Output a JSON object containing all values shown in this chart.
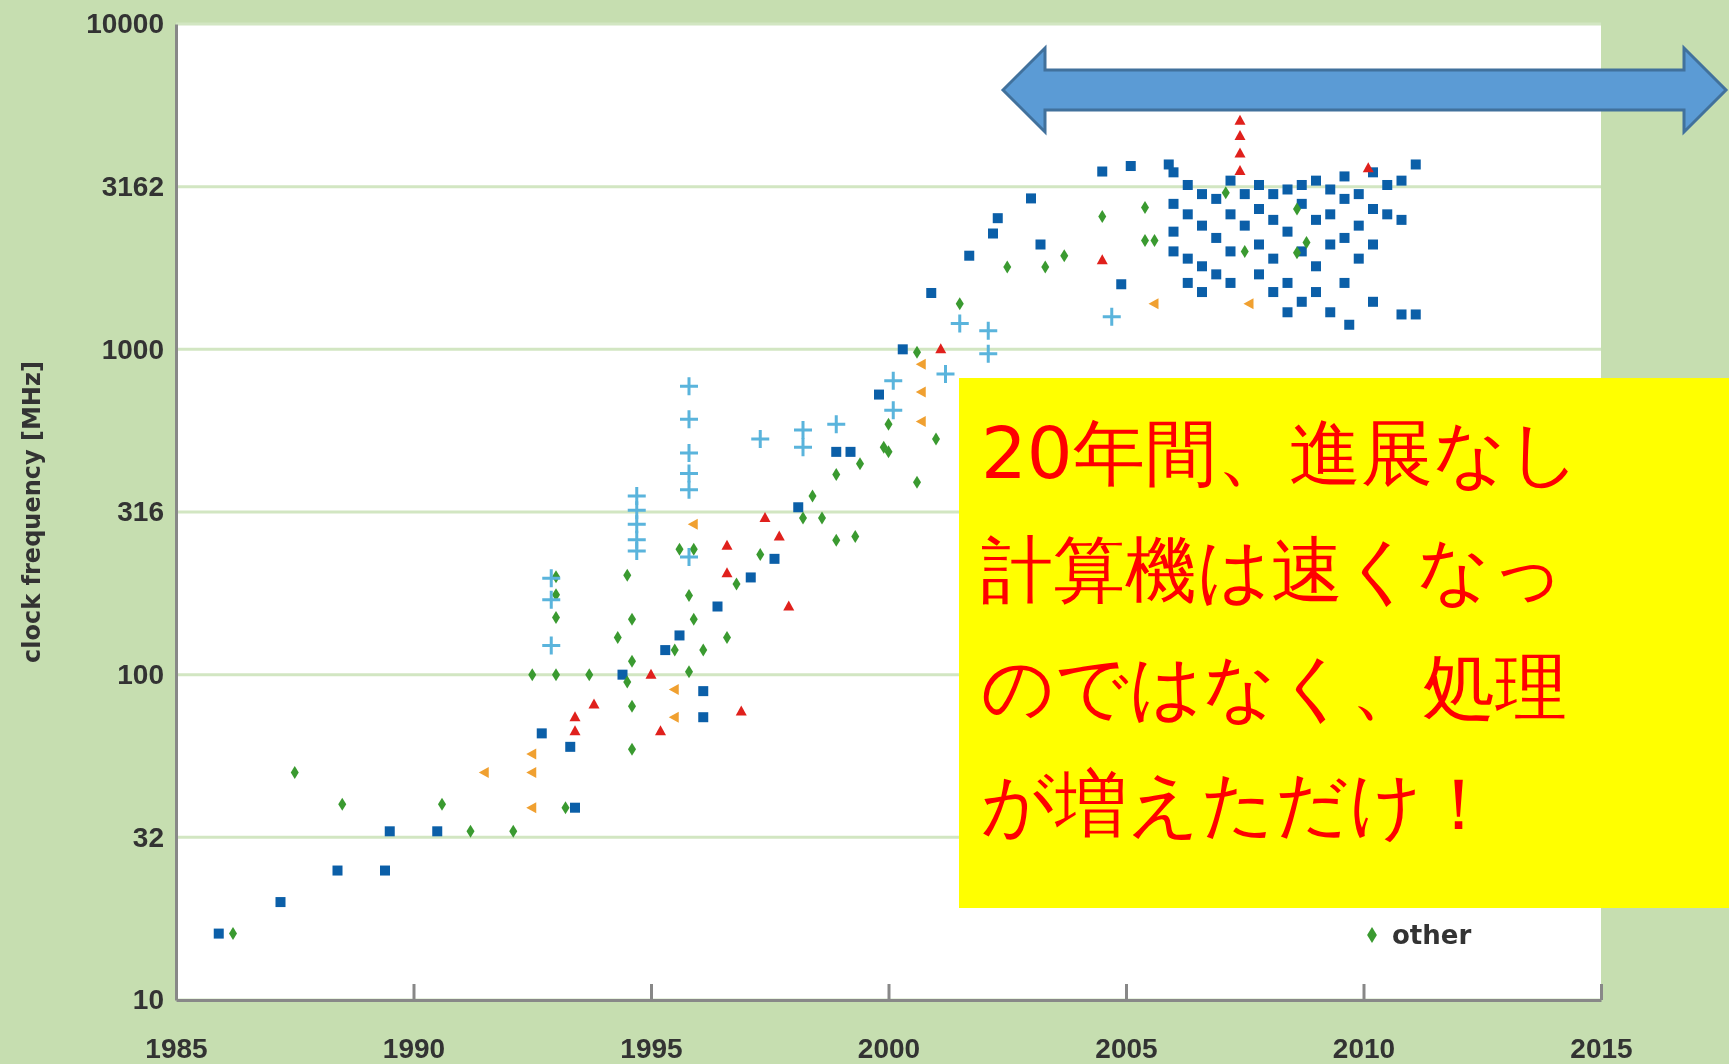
{
  "chart_data": {
    "type": "scatter",
    "ylabel": "clock frequency [MHz]",
    "log": "y",
    "grid": "y",
    "legend": "bottom right",
    "xlim": [
      1985,
      2015
    ],
    "xticks": [
      1985,
      1990,
      1995,
      2000,
      2005,
      2010,
      2015
    ],
    "ylim": [
      10,
      10000
    ],
    "yticks": [
      10,
      {
        "value": 31.62,
        "label": "32"
      },
      100,
      {
        "value": 316.2,
        "label": "316"
      },
      1000,
      3162,
      10000
    ],
    "annotations": [
      "20年間、進展なし計算機は速くなっのではなく、処理が増えただけ！"
    ],
    "series": [
      {
        "color": "#0b5fa8",
        "marker": "square",
        "x": [
          1985.9,
          1987.2,
          1988.4,
          1989.4,
          1989.5,
          1990.5,
          1992.7,
          1993.3,
          1993.4,
          1994.4,
          1995.3,
          1995.6,
          1996.1,
          1996.1,
          1996.4,
          1997.1,
          1997.6,
          1998.1,
          1998.9,
          1999.2,
          1999.8,
          2000.3,
          2000.9,
          2001.7,
          2002.2,
          2002.3,
          2003.0,
          2003.2,
          2004.5,
          2005.1,
          2004.9,
          2005.9,
          2006.0,
          2006.0,
          2006.0,
          2006.0,
          2006.3,
          2006.3,
          2006.3,
          2006.3,
          2006.6,
          2006.6,
          2006.6,
          2006.6,
          2006.9,
          2006.9,
          2006.9,
          2007.2,
          2007.2,
          2007.2,
          2007.2,
          2007.5,
          2007.5,
          2007.8,
          2007.8,
          2007.8,
          2007.8,
          2008.1,
          2008.1,
          2008.1,
          2008.1,
          2008.4,
          2008.4,
          2008.4,
          2008.4,
          2008.7,
          2008.7,
          2008.7,
          2008.7,
          2009.0,
          2009.0,
          2009.0,
          2009.0,
          2009.3,
          2009.3,
          2009.3,
          2009.3,
          2009.6,
          2009.6,
          2009.6,
          2009.6,
          2009.7,
          2009.9,
          2009.9,
          2009.9,
          2010.2,
          2010.2,
          2010.2,
          2010.2,
          2010.5,
          2010.5,
          2010.8,
          2010.8,
          2010.8,
          2011.1,
          2011.1
        ],
        "values": [
          16,
          20,
          25,
          25,
          33,
          33,
          66,
          60,
          39,
          100,
          119,
          132,
          89,
          74,
          162,
          199,
          227,
          327,
          484,
          484,
          726,
          1000,
          1490,
          1940,
          2270,
          2530,
          2910,
          2100,
          3520,
          3660,
          1585,
          3700,
          3500,
          2800,
          2300,
          2000,
          3200,
          2600,
          1900,
          1600,
          3000,
          2400,
          1800,
          1500,
          2900,
          2200,
          1700,
          3300,
          2600,
          2000,
          1600,
          3000,
          2400,
          3200,
          2700,
          2100,
          1700,
          3000,
          2500,
          1900,
          1500,
          3100,
          2300,
          1600,
          1300,
          3200,
          2800,
          2000,
          1400,
          3300,
          2500,
          1800,
          1500,
          3100,
          2600,
          2100,
          1300,
          3400,
          2900,
          2200,
          1600,
          1190,
          3000,
          2400,
          1900,
          3500,
          2700,
          2100,
          1400,
          3200,
          2600,
          3300,
          2500,
          1280,
          3700,
          1280
        ]
      },
      {
        "name": "other",
        "color": "#3a9a30",
        "marker": "diamond",
        "x": [
          1986.2,
          1987.5,
          1988.5,
          1990.6,
          1991.2,
          1992.1,
          1992.5,
          1993.0,
          1993.2,
          1993.0,
          1993.0,
          1993.0,
          1993.7,
          1994.3,
          1994.5,
          1994.6,
          1994.6,
          1994.5,
          1994.6,
          1994.6,
          1995.6,
          1995.9,
          1995.8,
          1995.9,
          1996.1,
          1995.5,
          1995.8,
          1996.6,
          1996.8,
          1997.3,
          1998.2,
          1998.4,
          1998.6,
          1998.9,
          1999.3,
          1998.9,
          1999.4,
          1999.9,
          2000.0,
          2000.0,
          2000.6,
          2000.6,
          2001.0,
          2001.5,
          2002.5,
          2003.3,
          2003.7,
          2004.5,
          2005.4,
          2005.4,
          2005.6,
          2007.1,
          2007.5,
          2008.6,
          2008.6,
          2008.8
        ],
        "values": [
          16,
          50,
          40,
          40,
          33,
          33,
          100,
          100,
          39,
          200,
          176,
          150,
          100,
          130,
          95,
          80,
          59,
          202,
          148,
          110,
          243,
          243,
          175,
          148,
          119,
          119,
          102,
          130,
          190,
          234,
          303,
          354,
          303,
          259,
          266,
          412,
          445,
          500,
          588,
          484,
          390,
          980,
          530,
          1380,
          1790,
          1790,
          1940,
          2560,
          2730,
          2160,
          2160,
          3030,
          2000,
          2700,
          1980,
          2130
        ]
      },
      {
        "color": "#e0201c",
        "marker": "triangle",
        "x": [
          1993.4,
          1993.4,
          1993.8,
          1995.0,
          1995.2,
          1996.6,
          1996.6,
          1997.4,
          1997.7,
          1997.9,
          1996.9,
          2001.1,
          2004.5,
          2007.4,
          2007.4,
          2007.4,
          2007.4,
          2010.1
        ],
        "values": [
          74,
          67,
          81,
          100,
          67,
          249,
          205,
          303,
          266,
          162,
          77,
          1000,
          1880,
          5040,
          4530,
          4000,
          3530,
          3600
        ]
      },
      {
        "color": "#f0a030",
        "marker": "triangle-left",
        "x": [
          1991.5,
          1992.5,
          1992.5,
          1992.5,
          1995.5,
          1995.5,
          1995.9,
          2000.7,
          2000.7,
          2000.7,
          2005.6,
          2007.6
        ],
        "values": [
          50,
          57,
          50,
          39,
          90,
          74,
          290,
          900,
          740,
          600,
          1380,
          1380
        ]
      },
      {
        "color": "#5ab4dc",
        "marker": "cross",
        "x": [
          1992.9,
          1992.9,
          1992.9,
          1994.7,
          1994.7,
          1994.7,
          1994.7,
          1994.7,
          1995.8,
          1995.8,
          1995.8,
          1995.8,
          1995.8,
          1995.8,
          1997.3,
          1998.2,
          1998.2,
          1998.9,
          2000.1,
          2000.1,
          2001.2,
          2001.5,
          2002.1,
          2002.1,
          2004.7
        ],
        "values": [
          198,
          170,
          123,
          354,
          320,
          290,
          260,
          240,
          770,
          610,
          480,
          415,
          370,
          230,
          530,
          565,
          500,
          588,
          800,
          650,
          840,
          1200,
          1140,
          970,
          1260
        ]
      }
    ]
  }
}
